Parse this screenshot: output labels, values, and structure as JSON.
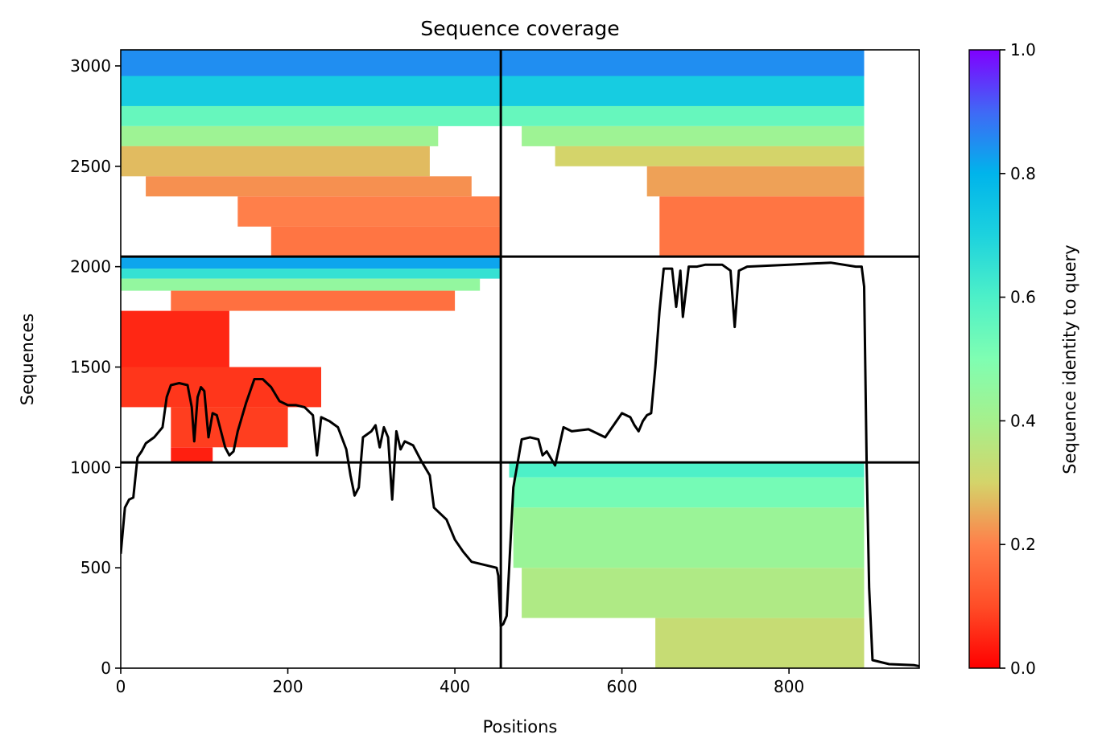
{
  "chart_data": {
    "type": "heatmap",
    "title": "Sequence coverage",
    "xlabel": "Positions",
    "ylabel": "Sequences",
    "xlim": [
      0,
      956
    ],
    "ylim": [
      0,
      3080
    ],
    "xticks": [
      0,
      200,
      400,
      600,
      800
    ],
    "xtick_labels": [
      "0",
      "200",
      "400",
      "600",
      "800"
    ],
    "yticks": [
      0,
      500,
      1000,
      1500,
      2000,
      2500,
      3000
    ],
    "ytick_labels": [
      "0",
      "500",
      "1000",
      "1500",
      "2000",
      "2500",
      "3000"
    ],
    "colorbar": {
      "label": "Sequence identity to query",
      "range": [
        0,
        1
      ],
      "ticks": [
        0.0,
        0.2,
        0.4,
        0.6,
        0.8,
        1.0
      ],
      "tick_labels": [
        "0.0",
        "0.2",
        "0.4",
        "0.6",
        "0.8",
        "1.0"
      ],
      "colormap": "rainbow_r"
    },
    "block_dividers": {
      "x": [
        455
      ],
      "y": [
        1025,
        2050
      ]
    },
    "blocks": [
      {
        "name": "block-top-left",
        "x_range": [
          0,
          455
        ],
        "y_range": [
          2050,
          3080
        ],
        "bands": [
          {
            "y": [
              2950,
              3080
            ],
            "x": [
              0,
              455
            ],
            "identity": 0.85
          },
          {
            "y": [
              2800,
              2950
            ],
            "x": [
              0,
              455
            ],
            "identity": 0.72
          },
          {
            "y": [
              2700,
              2800
            ],
            "x": [
              0,
              455
            ],
            "identity": 0.55
          },
          {
            "y": [
              2600,
              2700
            ],
            "x": [
              0,
              380
            ],
            "identity": 0.42
          },
          {
            "y": [
              2450,
              2600
            ],
            "x": [
              0,
              370
            ],
            "identity": 0.27
          },
          {
            "y": [
              2350,
              2450
            ],
            "x": [
              30,
              420
            ],
            "identity": 0.22
          },
          {
            "y": [
              2200,
              2350
            ],
            "x": [
              140,
              455
            ],
            "identity": 0.2
          },
          {
            "y": [
              2050,
              2200
            ],
            "x": [
              180,
              455
            ],
            "identity": 0.18
          }
        ]
      },
      {
        "name": "block-top-right",
        "x_range": [
          455,
          956
        ],
        "y_range": [
          2050,
          3080
        ],
        "bands": [
          {
            "y": [
              2950,
              3080
            ],
            "x": [
              455,
              890
            ],
            "identity": 0.85
          },
          {
            "y": [
              2800,
              2950
            ],
            "x": [
              455,
              890
            ],
            "identity": 0.72
          },
          {
            "y": [
              2700,
              2800
            ],
            "x": [
              455,
              890
            ],
            "identity": 0.55
          },
          {
            "y": [
              2600,
              2700
            ],
            "x": [
              480,
              890
            ],
            "identity": 0.42
          },
          {
            "y": [
              2500,
              2600
            ],
            "x": [
              520,
              890
            ],
            "identity": 0.3
          },
          {
            "y": [
              2350,
              2500
            ],
            "x": [
              630,
              890
            ],
            "identity": 0.24
          },
          {
            "y": [
              2050,
              2350
            ],
            "x": [
              645,
              890
            ],
            "identity": 0.18
          }
        ]
      },
      {
        "name": "block-middle-left",
        "x_range": [
          0,
          455
        ],
        "y_range": [
          1025,
          2050
        ],
        "bands": [
          {
            "y": [
              1990,
              2050
            ],
            "x": [
              0,
              455
            ],
            "identity": 0.82
          },
          {
            "y": [
              1940,
              1990
            ],
            "x": [
              0,
              455
            ],
            "identity": 0.65
          },
          {
            "y": [
              1880,
              1940
            ],
            "x": [
              0,
              430
            ],
            "identity": 0.45
          },
          {
            "y": [
              1780,
              1880
            ],
            "x": [
              60,
              400
            ],
            "identity": 0.17
          },
          {
            "y": [
              1500,
              1780
            ],
            "x": [
              0,
              130
            ],
            "identity": 0.05
          },
          {
            "y": [
              1300,
              1500
            ],
            "x": [
              0,
              240
            ],
            "identity": 0.07
          },
          {
            "y": [
              1100,
              1300
            ],
            "x": [
              60,
              200
            ],
            "identity": 0.08
          },
          {
            "y": [
              1030,
              1100
            ],
            "x": [
              60,
              110
            ],
            "identity": 0.04
          }
        ]
      },
      {
        "name": "block-bottom-right",
        "x_range": [
          455,
          956
        ],
        "y_range": [
          0,
          1025
        ],
        "bands": [
          {
            "y": [
              950,
              1025
            ],
            "x": [
              465,
              890
            ],
            "identity": 0.6
          },
          {
            "y": [
              800,
              950
            ],
            "x": [
              470,
              890
            ],
            "identity": 0.52
          },
          {
            "y": [
              500,
              800
            ],
            "x": [
              470,
              890
            ],
            "identity": 0.43
          },
          {
            "y": [
              250,
              500
            ],
            "x": [
              480,
              890
            ],
            "identity": 0.38
          },
          {
            "y": [
              0,
              250
            ],
            "x": [
              640,
              890
            ],
            "identity": 0.33
          }
        ]
      }
    ],
    "coverage_line": {
      "x": [
        0,
        5,
        10,
        15,
        20,
        25,
        30,
        40,
        50,
        55,
        60,
        70,
        80,
        85,
        88,
        92,
        96,
        100,
        105,
        110,
        115,
        120,
        125,
        130,
        135,
        140,
        150,
        160,
        170,
        180,
        190,
        200,
        210,
        220,
        230,
        235,
        240,
        250,
        260,
        270,
        275,
        280,
        285,
        290,
        300,
        305,
        310,
        315,
        320,
        325,
        330,
        335,
        340,
        350,
        360,
        370,
        375,
        380,
        390,
        400,
        410,
        420,
        430,
        440,
        450,
        452,
        455,
        458,
        462,
        470,
        475,
        480,
        490,
        500,
        505,
        510,
        520,
        530,
        540,
        560,
        580,
        600,
        610,
        615,
        620,
        625,
        630,
        635,
        640,
        645,
        650,
        660,
        665,
        670,
        673,
        680,
        690,
        700,
        720,
        730,
        735,
        740,
        745,
        750,
        800,
        850,
        880,
        887,
        890,
        893,
        896,
        900,
        920,
        950,
        956
      ],
      "y": [
        570,
        800,
        840,
        850,
        1050,
        1080,
        1120,
        1150,
        1200,
        1350,
        1410,
        1420,
        1410,
        1300,
        1130,
        1350,
        1400,
        1380,
        1150,
        1270,
        1260,
        1180,
        1100,
        1060,
        1080,
        1180,
        1320,
        1440,
        1440,
        1400,
        1330,
        1310,
        1310,
        1300,
        1260,
        1060,
        1250,
        1230,
        1200,
        1090,
        960,
        860,
        900,
        1150,
        1180,
        1210,
        1100,
        1200,
        1150,
        840,
        1180,
        1090,
        1130,
        1110,
        1030,
        960,
        800,
        780,
        740,
        640,
        580,
        530,
        520,
        510,
        500,
        460,
        210,
        220,
        260,
        900,
        1020,
        1140,
        1150,
        1140,
        1060,
        1080,
        1010,
        1200,
        1180,
        1190,
        1150,
        1270,
        1250,
        1210,
        1180,
        1230,
        1260,
        1270,
        1500,
        1780,
        1990,
        1990,
        1800,
        1980,
        1750,
        2000,
        2000,
        2010,
        2010,
        1980,
        1700,
        1980,
        1990,
        2000,
        2010,
        2020,
        2000,
        2000,
        1900,
        1020,
        400,
        40,
        20,
        15,
        10
      ]
    }
  }
}
